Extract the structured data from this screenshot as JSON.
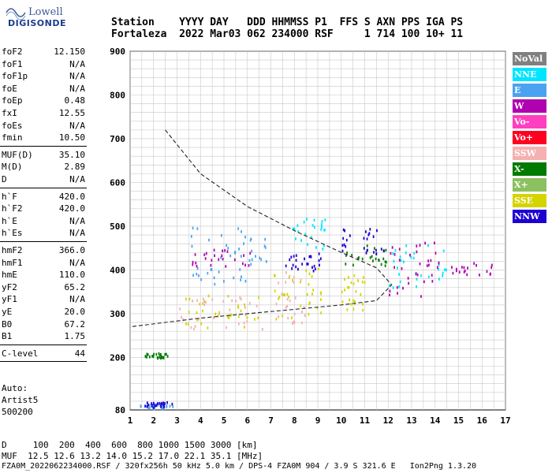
{
  "logo": {
    "line1": "Lowell",
    "line2": "DIGISONDE"
  },
  "header": {
    "line1": "Station    YYYY DAY   DDD HHMMSS P1  FFS S AXN PPS IGA PS",
    "line2": "Fortaleza  2022 Mar03 062 234000 RSF     1 714 100 10+ 11"
  },
  "sidebar": [
    {
      "k": "foF2",
      "v": "12.150"
    },
    {
      "k": "foF1",
      "v": "N/A"
    },
    {
      "k": "foF1p",
      "v": "N/A"
    },
    {
      "k": "foE",
      "v": "N/A"
    },
    {
      "k": "foEp",
      "v": "0.48"
    },
    {
      "k": "fxI",
      "v": "12.55"
    },
    {
      "k": "foEs",
      "v": "N/A"
    },
    {
      "k": "fmin",
      "v": "10.50"
    },
    {
      "k": "MUF(D)",
      "v": "35.10"
    },
    {
      "k": "M(D)",
      "v": "2.89"
    },
    {
      "k": "D",
      "v": "N/A"
    },
    {
      "k": "h`F",
      "v": "420.0"
    },
    {
      "k": "h`F2",
      "v": "420.0"
    },
    {
      "k": "h`E",
      "v": "N/A"
    },
    {
      "k": "h`Es",
      "v": "N/A"
    },
    {
      "k": "hmF2",
      "v": "366.0"
    },
    {
      "k": "hmF1",
      "v": "N/A"
    },
    {
      "k": "hmE",
      "v": "110.0"
    },
    {
      "k": "yF2",
      "v": "65.2"
    },
    {
      "k": "yF1",
      "v": "N/A"
    },
    {
      "k": "yE",
      "v": "20.0"
    },
    {
      "k": "B0",
      "v": "67.2"
    },
    {
      "k": "B1",
      "v": "1.75"
    },
    {
      "k": "C-level",
      "v": "44"
    }
  ],
  "autoscaling": {
    "line1": "Auto:",
    "line2": "Artist5",
    "line3": "500200"
  },
  "footer": {
    "line1": "D     100  200  400  600  800 1000 1500 3000 [km]",
    "line2": "MUF  12.5 12.6 13.2 14.0 15.2 17.0 22.1 35.1 [MHz]",
    "line3": "FZA0M_2022062234000.RSF / 320fx256h 50 kHz 5.0 km / DPS-4 FZA0M 904 / 3.9 S 321.6 E   Ion2Png 1.3.20"
  },
  "legend": [
    {
      "label": "NoVal",
      "color": "#808080"
    },
    {
      "label": "NNE",
      "color": "#00e5ff"
    },
    {
      "label": "E",
      "color": "#4aa3f0"
    },
    {
      "label": "W",
      "color": "#b000b0"
    },
    {
      "label": "Vo-",
      "color": "#ff3fbf"
    },
    {
      "label": "Vo+",
      "color": "#ff0020"
    },
    {
      "label": "SSW",
      "color": "#f5b0b0"
    },
    {
      "label": "X-",
      "color": "#007a00"
    },
    {
      "label": "X+",
      "color": "#8cc060"
    },
    {
      "label": "SSE",
      "color": "#d4d400"
    },
    {
      "label": "NNW",
      "color": "#1e00d0"
    }
  ],
  "chart_data": {
    "type": "scatter",
    "xlim": [
      1,
      17
    ],
    "ylim": [
      80,
      900
    ],
    "x_ticks": [
      "1",
      "2",
      "3",
      "4",
      "5",
      "6",
      "7",
      "8",
      "9",
      "10",
      "11",
      "12",
      "13",
      "14",
      "15",
      "16",
      "17"
    ],
    "y_ticks": [
      "80",
      "200",
      "300",
      "400",
      "500",
      "600",
      "700",
      "800",
      "900"
    ],
    "grid": true,
    "clusters": [
      {
        "x": [
          1.5,
          2.6
        ],
        "y": [
          200,
          212
        ],
        "color": "#007a00"
      },
      {
        "x": [
          1.4,
          2.8
        ],
        "y": [
          85,
          96
        ],
        "color": "#4aa3f0"
      },
      {
        "x": [
          1.6,
          2.8
        ],
        "y": [
          88,
          100
        ],
        "color": "#1e00d0"
      },
      {
        "x": [
          3.0,
          6.7
        ],
        "y": [
          270,
          345
        ],
        "color": "#d4d400"
      },
      {
        "x": [
          3.0,
          6.7
        ],
        "y": [
          265,
          340
        ],
        "color": "#f5b0b0"
      },
      {
        "x": [
          3.5,
          6.8
        ],
        "y": [
          370,
          500
        ],
        "color": "#4aa3f0"
      },
      {
        "x": [
          3.6,
          6.3
        ],
        "y": [
          410,
          450
        ],
        "color": "#b000b0"
      },
      {
        "x": [
          6.8,
          9.2
        ],
        "y": [
          290,
          410
        ],
        "color": "#d4d400"
      },
      {
        "x": [
          7.2,
          8.5
        ],
        "y": [
          280,
          400
        ],
        "color": "#f5b0b0"
      },
      {
        "x": [
          7.6,
          9.2
        ],
        "y": [
          400,
          440
        ],
        "color": "#1e00d0"
      },
      {
        "x": [
          7.7,
          9.3
        ],
        "y": [
          450,
          520
        ],
        "color": "#00e5ff"
      },
      {
        "x": [
          10.0,
          12.0
        ],
        "y": [
          410,
          460
        ],
        "color": "#007a00"
      },
      {
        "x": [
          10.0,
          11.0
        ],
        "y": [
          310,
          400
        ],
        "color": "#d4d400"
      },
      {
        "x": [
          10.0,
          12.0
        ],
        "y": [
          440,
          500
        ],
        "color": "#1e00d0"
      },
      {
        "x": [
          12.0,
          14.5
        ],
        "y": [
          360,
          470
        ],
        "color": "#00e5ff"
      },
      {
        "x": [
          12.0,
          14.0
        ],
        "y": [
          340,
          470
        ],
        "color": "#b000b0"
      },
      {
        "x": [
          13.5,
          16.5
        ],
        "y": [
          390,
          420
        ],
        "color": "#b000b0"
      }
    ],
    "profile_curve": {
      "x": [
        2.5,
        4,
        6,
        8,
        10,
        11.5,
        12.15,
        11.5,
        10,
        8,
        6,
        4,
        2.5,
        1
      ],
      "y": [
        720,
        620,
        545,
        490,
        440,
        405,
        366,
        330,
        320,
        310,
        300,
        290,
        280,
        270
      ]
    }
  }
}
